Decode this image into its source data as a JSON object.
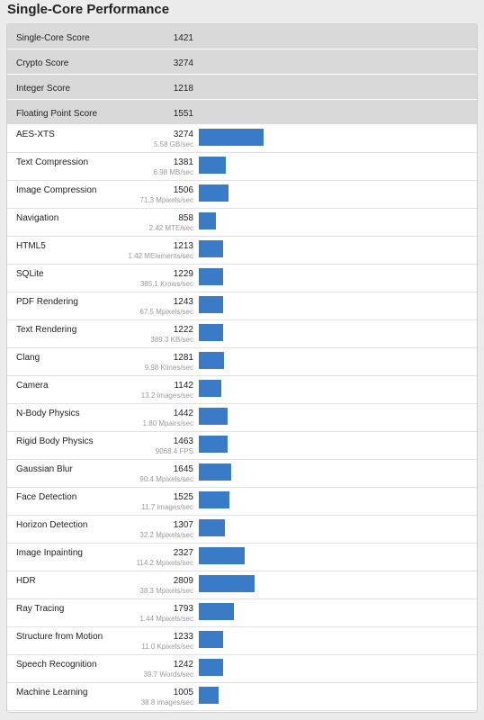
{
  "title": "Single-Core Performance",
  "bar_color": "#3a7bc8",
  "bar_scale_max": 3274,
  "summary": [
    {
      "name": "Single-Core Score",
      "score": "1421"
    },
    {
      "name": "Crypto Score",
      "score": "3274"
    },
    {
      "name": "Integer Score",
      "score": "1218"
    },
    {
      "name": "Floating Point Score",
      "score": "1551"
    }
  ],
  "benchmarks": [
    {
      "name": "AES-XTS",
      "score": "3274",
      "rate": "5.58 GB/sec",
      "value": 3274
    },
    {
      "name": "Text Compression",
      "score": "1381",
      "rate": "6.98 MB/sec",
      "value": 1381
    },
    {
      "name": "Image Compression",
      "score": "1506",
      "rate": "71.3 Mpixels/sec",
      "value": 1506
    },
    {
      "name": "Navigation",
      "score": "858",
      "rate": "2.42 MTE/sec",
      "value": 858
    },
    {
      "name": "HTML5",
      "score": "1213",
      "rate": "1.42 MElements/sec",
      "value": 1213
    },
    {
      "name": "SQLite",
      "score": "1229",
      "rate": "385.1 Krows/sec",
      "value": 1229
    },
    {
      "name": "PDF Rendering",
      "score": "1243",
      "rate": "67.5 Mpixels/sec",
      "value": 1243
    },
    {
      "name": "Text Rendering",
      "score": "1222",
      "rate": "389.3 KB/sec",
      "value": 1222
    },
    {
      "name": "Clang",
      "score": "1281",
      "rate": "9.98 Klines/sec",
      "value": 1281
    },
    {
      "name": "Camera",
      "score": "1142",
      "rate": "13.2 images/sec",
      "value": 1142
    },
    {
      "name": "N-Body Physics",
      "score": "1442",
      "rate": "1.80 Mpairs/sec",
      "value": 1442
    },
    {
      "name": "Rigid Body Physics",
      "score": "1463",
      "rate": "9068.4 FPS",
      "value": 1463
    },
    {
      "name": "Gaussian Blur",
      "score": "1645",
      "rate": "90.4 Mpixels/sec",
      "value": 1645
    },
    {
      "name": "Face Detection",
      "score": "1525",
      "rate": "11.7 images/sec",
      "value": 1525
    },
    {
      "name": "Horizon Detection",
      "score": "1307",
      "rate": "32.2 Mpixels/sec",
      "value": 1307
    },
    {
      "name": "Image Inpainting",
      "score": "2327",
      "rate": "114.2 Mpixels/sec",
      "value": 2327
    },
    {
      "name": "HDR",
      "score": "2809",
      "rate": "38.3 Mpixels/sec",
      "value": 2809
    },
    {
      "name": "Ray Tracing",
      "score": "1793",
      "rate": "1.44 Mpixels/sec",
      "value": 1793
    },
    {
      "name": "Structure from Motion",
      "score": "1233",
      "rate": "11.0 Kpixels/sec",
      "value": 1233
    },
    {
      "name": "Speech Recognition",
      "score": "1242",
      "rate": "39.7 Words/sec",
      "value": 1242
    },
    {
      "name": "Machine Learning",
      "score": "1005",
      "rate": "38.8 images/sec",
      "value": 1005
    }
  ]
}
